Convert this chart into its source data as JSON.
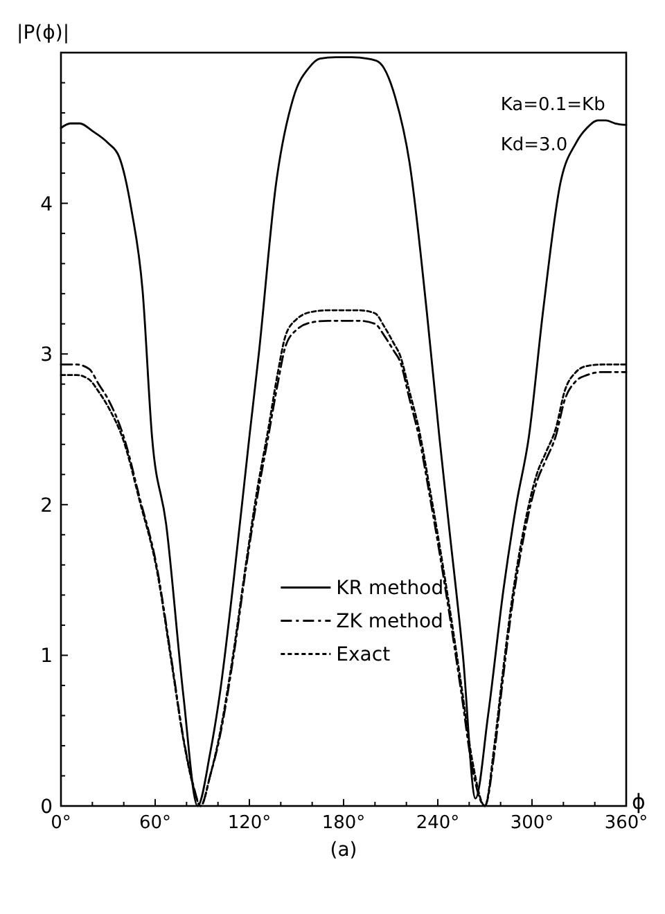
{
  "chart_data": {
    "type": "line",
    "xlabel": "ϕ",
    "ylabel": "|P(ϕ)|",
    "xlim": [
      0,
      360
    ],
    "ylim": [
      0,
      5
    ],
    "xticks": [
      {
        "value": 0,
        "label": "0°"
      },
      {
        "value": 20,
        "label": null
      },
      {
        "value": 40,
        "label": null
      },
      {
        "value": 60,
        "label": "60°"
      },
      {
        "value": 80,
        "label": null
      },
      {
        "value": 100,
        "label": null
      },
      {
        "value": 120,
        "label": "120°"
      },
      {
        "value": 140,
        "label": null
      },
      {
        "value": 160,
        "label": null
      },
      {
        "value": 180,
        "label": "180°"
      },
      {
        "value": 200,
        "label": null
      },
      {
        "value": 220,
        "label": null
      },
      {
        "value": 240,
        "label": "240°"
      },
      {
        "value": 260,
        "label": null
      },
      {
        "value": 280,
        "label": null
      },
      {
        "value": 300,
        "label": "300°"
      },
      {
        "value": 320,
        "label": null
      },
      {
        "value": 340,
        "label": null
      },
      {
        "value": 360,
        "label": "360°"
      }
    ],
    "yticks": [
      0,
      {
        "value": 0.2,
        "label": null
      },
      {
        "value": 0.4,
        "label": null
      },
      {
        "value": 0.6,
        "label": null
      },
      {
        "value": 0.8,
        "label": null
      },
      1,
      {
        "value": 1.2,
        "label": null
      },
      {
        "value": 1.4,
        "label": null
      },
      {
        "value": 1.6,
        "label": null
      },
      {
        "value": 1.8,
        "label": null
      },
      2,
      {
        "value": 2.2,
        "label": null
      },
      {
        "value": 2.4,
        "label": null
      },
      {
        "value": 2.6,
        "label": null
      },
      {
        "value": 2.8,
        "label": null
      },
      3,
      {
        "value": 3.2,
        "label": null
      },
      {
        "value": 3.4,
        "label": null
      },
      {
        "value": 3.6,
        "label": null
      },
      {
        "value": 3.8,
        "label": null
      },
      4,
      {
        "value": 4.2,
        "label": null
      },
      {
        "value": 4.4,
        "label": null
      },
      {
        "value": 4.6,
        "label": null
      },
      {
        "value": 4.8,
        "label": null
      }
    ],
    "grid": false,
    "legend": "bottom",
    "annotations": [
      "Ka=0.1=Kb",
      "Kd=3.0",
      "(a)"
    ],
    "series": [
      {
        "name": "KR method",
        "color": "#000000",
        "line_style": "solid",
        "x": [
          0,
          6,
          12,
          20,
          30,
          37,
          45,
          52,
          58,
          67,
          78,
          87,
          95,
          101,
          110,
          120,
          126,
          137,
          148,
          158,
          165,
          175,
          185,
          195,
          202,
          213,
          222,
          233,
          241,
          247,
          256,
          264,
          272,
          282,
          290,
          298,
          307,
          318,
          328,
          335,
          342,
          347,
          353,
          360
        ],
        "values": [
          4.5,
          4.53,
          4.53,
          4.48,
          4.4,
          4.31,
          3.95,
          3.42,
          2.45,
          1.87,
          0.73,
          0.0,
          0.35,
          0.73,
          1.5,
          2.45,
          3.0,
          4.13,
          4.7,
          4.9,
          4.96,
          4.97,
          4.97,
          4.96,
          4.94,
          4.7,
          4.27,
          3.28,
          2.45,
          1.87,
          1.0,
          0.05,
          0.6,
          1.45,
          2.0,
          2.45,
          3.28,
          4.13,
          4.4,
          4.5,
          4.55,
          4.55,
          4.53,
          4.52
        ]
      },
      {
        "name": "ZK method",
        "color": "#000000",
        "line_style": "dashed",
        "x": [
          0,
          10,
          18,
          24,
          30,
          40,
          50,
          61,
          70,
          78,
          84,
          89,
          95,
          101,
          110,
          118,
          125,
          132,
          138,
          143,
          150,
          160,
          170,
          180,
          190,
          200,
          206,
          212,
          216,
          222,
          228,
          235,
          240,
          247,
          255,
          262,
          270,
          276,
          281,
          287,
          295,
          303,
          309,
          315,
          321,
          328,
          335,
          345,
          360
        ],
        "values": [
          2.93,
          2.93,
          2.9,
          2.8,
          2.7,
          2.45,
          2.05,
          1.59,
          1.0,
          0.45,
          0.15,
          0.0,
          0.2,
          0.45,
          1.0,
          1.59,
          2.05,
          2.45,
          2.8,
          3.05,
          3.16,
          3.21,
          3.22,
          3.22,
          3.22,
          3.2,
          3.12,
          3.02,
          2.95,
          2.7,
          2.45,
          2.05,
          1.75,
          1.3,
          0.75,
          0.25,
          0.0,
          0.35,
          0.8,
          1.3,
          1.8,
          2.15,
          2.3,
          2.45,
          2.7,
          2.82,
          2.86,
          2.88,
          2.88
        ]
      },
      {
        "name": "Exact",
        "color": "#000000",
        "line_style": "dotted",
        "x": [
          0,
          10,
          18,
          24,
          30,
          40,
          50,
          61,
          70,
          78,
          84,
          89,
          95,
          101,
          110,
          118,
          125,
          132,
          138,
          143,
          150,
          160,
          170,
          180,
          190,
          200,
          206,
          212,
          216,
          222,
          228,
          235,
          240,
          247,
          255,
          262,
          270,
          276,
          281,
          287,
          295,
          303,
          309,
          315,
          321,
          328,
          335,
          345,
          360
        ],
        "values": [
          2.86,
          2.86,
          2.83,
          2.75,
          2.65,
          2.42,
          2.03,
          1.57,
          0.98,
          0.44,
          0.14,
          0.0,
          0.2,
          0.47,
          1.03,
          1.62,
          2.1,
          2.5,
          2.87,
          3.12,
          3.23,
          3.28,
          3.29,
          3.29,
          3.29,
          3.27,
          3.18,
          3.07,
          2.99,
          2.75,
          2.5,
          2.1,
          1.8,
          1.35,
          0.8,
          0.3,
          0.0,
          0.4,
          0.85,
          1.35,
          1.85,
          2.2,
          2.35,
          2.5,
          2.76,
          2.88,
          2.92,
          2.93,
          2.93
        ]
      }
    ]
  }
}
